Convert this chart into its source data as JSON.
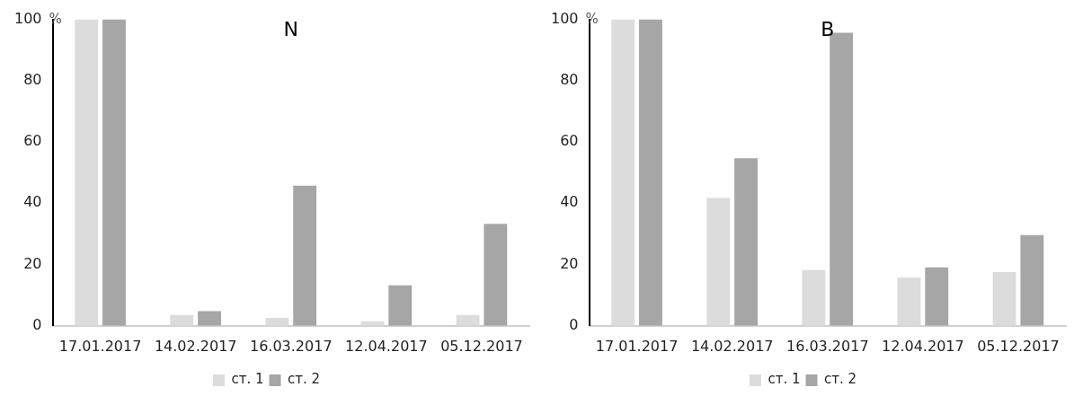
{
  "chart_data": [
    {
      "type": "bar",
      "title": "N",
      "ylabel": "%",
      "categories": [
        "17.01.2017",
        "14.02.2017",
        "16.03.2017",
        "12.04.2017",
        "05.12.2017"
      ],
      "series": [
        {
          "name": "ст. 1",
          "color": "#dcdcdc",
          "values": [
            100,
            3.5,
            2.6,
            1.5,
            3.5
          ]
        },
        {
          "name": "ст. 2",
          "color": "#a6a6a6",
          "values": [
            100,
            4.8,
            45.7,
            13.2,
            33.3
          ]
        }
      ],
      "ylim": [
        0,
        100
      ],
      "yticks": [
        0,
        20,
        40,
        60,
        80,
        100
      ],
      "grid": false,
      "legend": "bottom"
    },
    {
      "type": "bar",
      "title": "B",
      "ylabel": "%",
      "categories": [
        "17.01.2017",
        "14.02.2017",
        "16.03.2017",
        "12.04.2017",
        "05.12.2017"
      ],
      "series": [
        {
          "name": "ст. 1",
          "color": "#dcdcdc",
          "values": [
            100,
            41.7,
            18.2,
            15.8,
            17.5
          ]
        },
        {
          "name": "ст. 2",
          "color": "#a6a6a6",
          "values": [
            100,
            54.7,
            95.6,
            19.1,
            29.6
          ]
        }
      ],
      "ylim": [
        0,
        100
      ],
      "yticks": [
        0,
        20,
        40,
        60,
        80,
        100
      ],
      "grid": false,
      "legend": "bottom"
    }
  ]
}
